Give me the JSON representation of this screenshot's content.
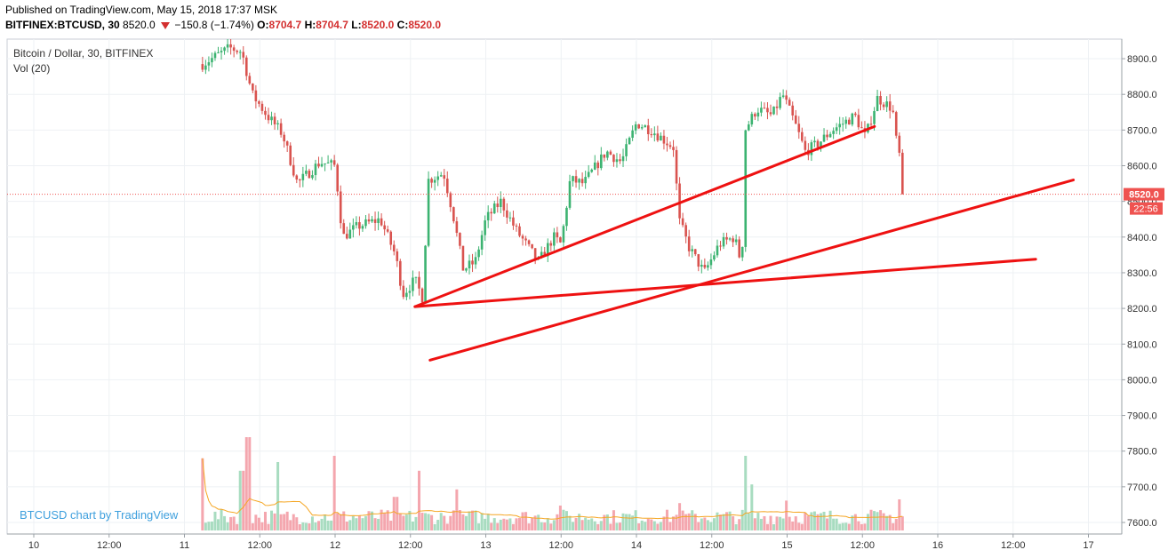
{
  "header": {
    "published": "Published on TradingView.com, May 15, 2018 17:37 MSK",
    "symbol": "BITFINEX:BTCUSD, 30",
    "last": "8520.0",
    "change": "−150.8 (−1.74%)",
    "o_label": "O:",
    "o_value": "8704.7",
    "h_label": "H:",
    "h_value": "8704.7",
    "l_label": "L:",
    "l_value": "8520.0",
    "c_label": "C:",
    "c_value": "8520.0"
  },
  "legend": {
    "title": "Bitcoin / Dollar, 30, BITFINEX",
    "indicator": "Vol (20)"
  },
  "watermark": "BTCUSD chart by TradingView",
  "colors": {
    "up": "#3cb371",
    "down": "#d9534f",
    "vol_up": "#a8dcc0",
    "vol_down": "#f4a6ae",
    "trendline": "#ee1111",
    "price_label_bg": "#ef5350",
    "grid": "#eef1f4",
    "vol_ma": "#f5a623"
  },
  "chart_data": {
    "type": "candlestick",
    "title": "Bitcoin / Dollar, 30, BITFINEX",
    "price_axis": {
      "min": 7600,
      "max": 8900,
      "step": 100,
      "ticks": [
        "7600.0",
        "7700.0",
        "7800.0",
        "7900.0",
        "8000.0",
        "8100.0",
        "8200.0",
        "8300.0",
        "8400.0",
        "8500.0",
        "8600.0",
        "8700.0",
        "8800.0",
        "8900.0"
      ]
    },
    "time_axis": {
      "ticks": [
        {
          "label": "10",
          "t": 0
        },
        {
          "label": "12:00",
          "t": 0.5
        },
        {
          "label": "11",
          "t": 1
        },
        {
          "label": "12:00",
          "t": 1.5
        },
        {
          "label": "12",
          "t": 2
        },
        {
          "label": "12:00",
          "t": 2.5
        },
        {
          "label": "13",
          "t": 3
        },
        {
          "label": "12:00",
          "t": 3.5
        },
        {
          "label": "14",
          "t": 4
        },
        {
          "label": "12:00",
          "t": 4.5
        },
        {
          "label": "15",
          "t": 5
        },
        {
          "label": "12:00",
          "t": 5.5
        },
        {
          "label": "16",
          "t": 6
        },
        {
          "label": "12:00",
          "t": 6.5
        },
        {
          "label": "17",
          "t": 7
        }
      ]
    },
    "last_price": 8520,
    "last_price_label": "8520.0",
    "countdown_label": "22:56",
    "path_keypoints": [
      {
        "t": 1.12,
        "p": 8885
      },
      {
        "t": 1.3,
        "p": 8930
      },
      {
        "t": 1.38,
        "p": 8920
      },
      {
        "t": 1.45,
        "p": 8800
      },
      {
        "t": 1.55,
        "p": 8740
      },
      {
        "t": 1.65,
        "p": 8690
      },
      {
        "t": 1.75,
        "p": 8550
      },
      {
        "t": 1.9,
        "p": 8610
      },
      {
        "t": 2.0,
        "p": 8600
      },
      {
        "t": 2.05,
        "p": 8400
      },
      {
        "t": 2.15,
        "p": 8430
      },
      {
        "t": 2.3,
        "p": 8450
      },
      {
        "t": 2.4,
        "p": 8350
      },
      {
        "t": 2.45,
        "p": 8240
      },
      {
        "t": 2.53,
        "p": 8280
      },
      {
        "t": 2.58,
        "p": 8230
      },
      {
        "t": 2.62,
        "p": 8560
      },
      {
        "t": 2.72,
        "p": 8580
      },
      {
        "t": 2.78,
        "p": 8470
      },
      {
        "t": 2.85,
        "p": 8310
      },
      {
        "t": 2.93,
        "p": 8330
      },
      {
        "t": 3.0,
        "p": 8450
      },
      {
        "t": 3.1,
        "p": 8500
      },
      {
        "t": 3.2,
        "p": 8420
      },
      {
        "t": 3.3,
        "p": 8360
      },
      {
        "t": 3.35,
        "p": 8330
      },
      {
        "t": 3.45,
        "p": 8400
      },
      {
        "t": 3.5,
        "p": 8380
      },
      {
        "t": 3.56,
        "p": 8560
      },
      {
        "t": 3.65,
        "p": 8550
      },
      {
        "t": 3.8,
        "p": 8640
      },
      {
        "t": 3.9,
        "p": 8610
      },
      {
        "t": 4.0,
        "p": 8720
      },
      {
        "t": 4.1,
        "p": 8700
      },
      {
        "t": 4.25,
        "p": 8650
      },
      {
        "t": 4.28,
        "p": 8450
      },
      {
        "t": 4.35,
        "p": 8370
      },
      {
        "t": 4.45,
        "p": 8300
      },
      {
        "t": 4.55,
        "p": 8380
      },
      {
        "t": 4.65,
        "p": 8400
      },
      {
        "t": 4.7,
        "p": 8320
      },
      {
        "t": 4.72,
        "p": 8700
      },
      {
        "t": 4.8,
        "p": 8760
      },
      {
        "t": 4.9,
        "p": 8740
      },
      {
        "t": 4.97,
        "p": 8800
      },
      {
        "t": 5.05,
        "p": 8720
      },
      {
        "t": 5.12,
        "p": 8640
      },
      {
        "t": 5.2,
        "p": 8660
      },
      {
        "t": 5.3,
        "p": 8700
      },
      {
        "t": 5.45,
        "p": 8740
      },
      {
        "t": 5.52,
        "p": 8680
      },
      {
        "t": 5.6,
        "p": 8790
      },
      {
        "t": 5.7,
        "p": 8760
      },
      {
        "t": 5.72,
        "p": 8680
      },
      {
        "t": 5.76,
        "p": 8600
      },
      {
        "t": 5.78,
        "p": 8520
      }
    ],
    "volume_spikes": [
      {
        "t": 1.05,
        "h": 0.32,
        "up": false
      },
      {
        "t": 1.12,
        "h": 0.58,
        "up": false
      },
      {
        "t": 1.38,
        "h": 0.48,
        "up": false
      },
      {
        "t": 1.42,
        "h": 0.75,
        "up": false
      },
      {
        "t": 1.62,
        "h": 0.55,
        "up": false
      },
      {
        "t": 2.0,
        "h": 0.6,
        "up": false
      },
      {
        "t": 2.4,
        "h": 0.27,
        "up": false
      },
      {
        "t": 2.55,
        "h": 0.48,
        "up": true
      },
      {
        "t": 2.8,
        "h": 0.33,
        "up": false
      },
      {
        "t": 3.5,
        "h": 0.2,
        "up": true
      },
      {
        "t": 4.28,
        "h": 0.22,
        "up": false
      },
      {
        "t": 4.72,
        "h": 0.6,
        "up": true
      },
      {
        "t": 4.76,
        "h": 0.37,
        "up": true
      },
      {
        "t": 5.0,
        "h": 0.24,
        "up": true
      },
      {
        "t": 5.75,
        "h": 0.25,
        "up": false
      },
      {
        "t": 5.8,
        "h": 0.24,
        "up": false
      }
    ],
    "trendlines": [
      {
        "from": {
          "t": 2.53,
          "p": 8205
        },
        "to": {
          "t": 5.58,
          "p": 8710
        }
      },
      {
        "from": {
          "t": 2.63,
          "p": 8055
        },
        "to": {
          "t": 6.9,
          "p": 8560
        }
      },
      {
        "from": {
          "t": 2.53,
          "p": 8205
        },
        "to": {
          "t": 6.65,
          "p": 8338
        }
      }
    ]
  }
}
